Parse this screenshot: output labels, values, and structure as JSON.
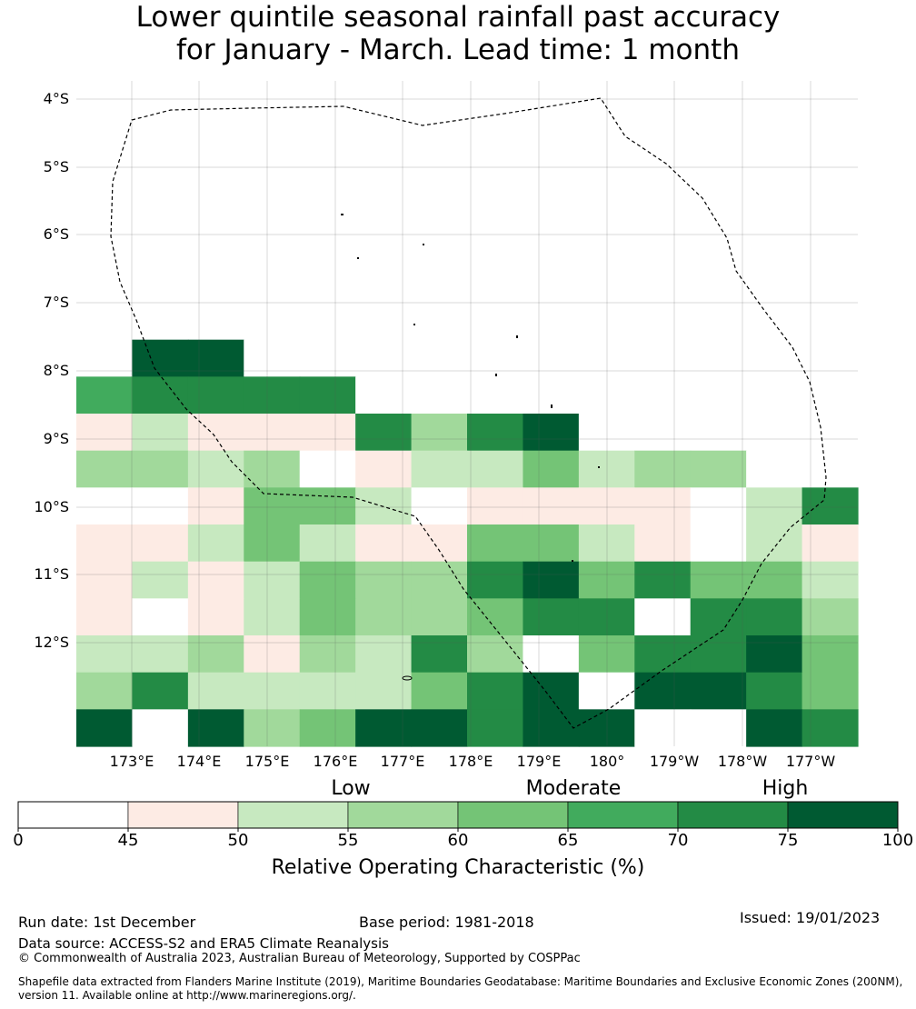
{
  "title": {
    "line1": "Lower quintile seasonal rainfall past accuracy",
    "line2": "for January - March. Lead time: 1 month"
  },
  "map": {
    "lat_labels": [
      "4°S",
      "5°S",
      "6°S",
      "7°S",
      "8°S",
      "9°S",
      "10°S",
      "11°S",
      "12°S"
    ],
    "lon_labels": [
      "173°E",
      "174°E",
      "175°E",
      "176°E",
      "177°E",
      "178°E",
      "179°E",
      "180°",
      "179°W",
      "178°W",
      "177°W"
    ],
    "lat_range": [
      "3.75°S",
      "13.5°S"
    ],
    "lon_range": [
      "172.2°E",
      "176.3°W"
    ],
    "grid_cell_deg": 0.833,
    "grid_rows": [
      [
        9,
        9,
        9,
        9,
        9,
        9,
        9,
        9,
        9,
        9,
        9,
        9,
        9,
        9
      ],
      [
        9,
        9,
        9,
        9,
        9,
        9,
        9,
        9,
        9,
        9,
        9,
        9,
        9,
        9
      ],
      [
        9,
        9,
        9,
        9,
        9,
        9,
        9,
        9,
        9,
        9,
        9,
        9,
        9,
        9
      ],
      [
        9,
        9,
        9,
        9,
        9,
        9,
        9,
        9,
        9,
        9,
        9,
        9,
        9,
        9
      ],
      [
        9,
        9,
        9,
        9,
        9,
        9,
        9,
        9,
        9,
        9,
        9,
        9,
        9,
        9
      ],
      [
        9,
        9,
        9,
        9,
        9,
        9,
        9,
        9,
        9,
        9,
        9,
        9,
        9,
        9
      ],
      [
        9,
        9,
        9,
        9,
        9,
        9,
        9,
        9,
        9,
        9,
        9,
        9,
        9,
        9
      ],
      [
        9,
        8,
        8,
        9,
        9,
        9,
        9,
        9,
        9,
        9,
        9,
        9,
        9,
        9
      ],
      [
        6,
        7,
        7,
        7,
        7,
        9,
        9,
        9,
        9,
        9,
        9,
        9,
        9,
        9
      ],
      [
        2,
        3,
        2,
        2,
        2,
        7,
        4,
        7,
        8,
        9,
        9,
        9,
        9,
        9
      ],
      [
        4,
        4,
        3,
        4,
        1,
        2,
        3,
        3,
        5,
        3,
        4,
        4,
        9,
        9
      ],
      [
        1,
        1,
        2,
        5,
        5,
        3,
        1,
        2,
        2,
        2,
        2,
        1,
        3,
        7
      ],
      [
        2,
        2,
        3,
        5,
        3,
        2,
        2,
        5,
        5,
        3,
        2,
        1,
        3,
        2
      ],
      [
        2,
        3,
        2,
        3,
        5,
        4,
        4,
        7,
        8,
        5,
        7,
        5,
        5,
        3
      ],
      [
        2,
        1,
        2,
        3,
        5,
        4,
        4,
        5,
        7,
        7,
        9,
        7,
        7,
        4
      ],
      [
        3,
        3,
        4,
        2,
        4,
        3,
        7,
        4,
        9,
        5,
        7,
        7,
        8,
        5
      ],
      [
        4,
        7,
        3,
        3,
        3,
        3,
        5,
        7,
        8,
        9,
        8,
        8,
        7,
        5
      ],
      [
        8,
        9,
        8,
        4,
        5,
        8,
        8,
        7,
        8,
        8,
        9,
        9,
        8,
        7
      ]
    ],
    "eez_label": "EEZ boundary"
  },
  "categories": {
    "low": "Low",
    "moderate": "Moderate",
    "high": "High"
  },
  "colorbar": {
    "ticks": [
      "0",
      "45",
      "50",
      "55",
      "60",
      "65",
      "70",
      "75",
      "100"
    ],
    "boundaries": [
      0,
      45,
      50,
      55,
      60,
      65,
      70,
      75,
      100
    ],
    "colors": [
      "#ffffff",
      "#fdebe4",
      "#c7e9c0",
      "#a1d99b",
      "#74c476",
      "#41ab5d",
      "#238b45",
      "#005a32"
    ],
    "label": "Relative Operating Characteristic (%)"
  },
  "footer": {
    "run_date": "Run date: 1st December",
    "base_period": "Base period: 1981-2018",
    "issued": "Issued: 19/01/2023",
    "data_source": "Data source: ACCESS-S2 and ERA5 Climate Reanalysis",
    "copyright": "© Commonwealth of Australia 2023, Australian Bureau of Meteorology, Supported by COSPPac",
    "shapefile": "Shapefile data extracted from Flanders Marine Institute (2019), Maritime Boundaries Geodatabase: Maritime Boundaries and Exclusive Economic Zones (200NM), version 11. Available online at http://www.marineregions.org/."
  }
}
